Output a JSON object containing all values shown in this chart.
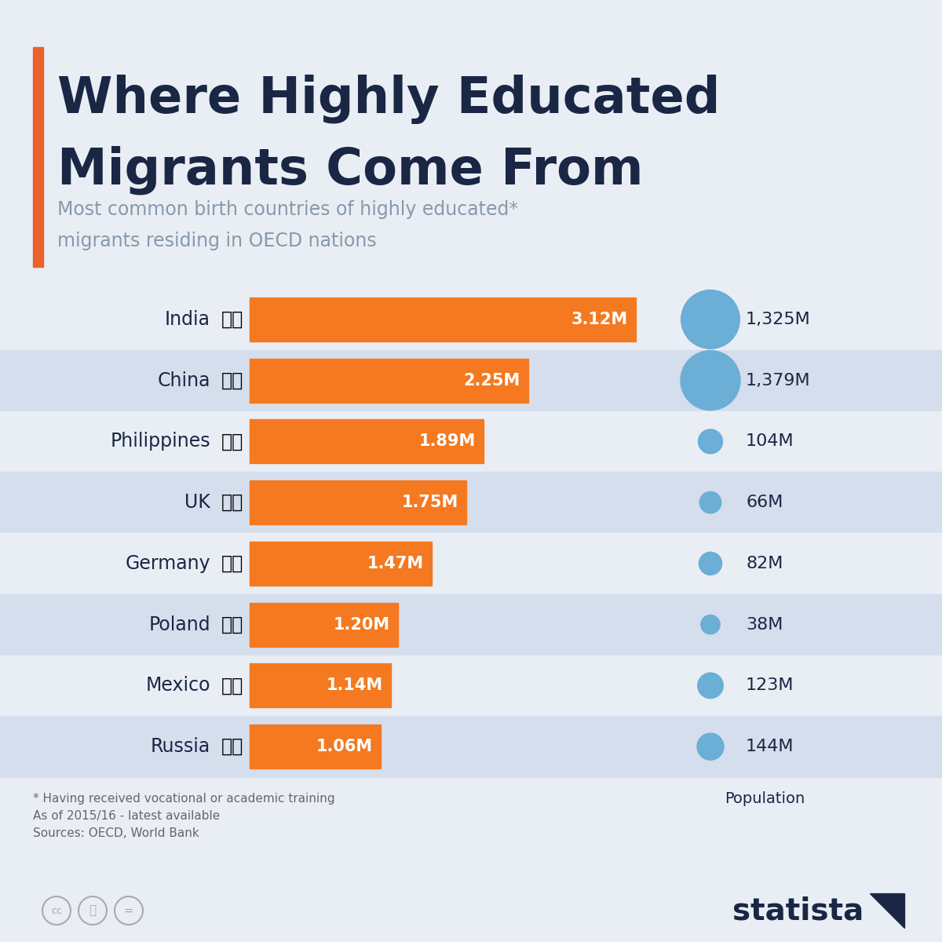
{
  "title_line1": "Where Highly Educated",
  "title_line2": "Migrants Come From",
  "subtitle_line1": "Most common birth countries of highly educated*",
  "subtitle_line2": "migrants residing in OECD nations",
  "countries": [
    "India",
    "China",
    "Philippines",
    "UK",
    "Germany",
    "Poland",
    "Mexico",
    "Russia"
  ],
  "migrants": [
    3.12,
    2.25,
    1.89,
    1.75,
    1.47,
    1.2,
    1.14,
    1.06
  ],
  "migrant_labels": [
    "3.12M",
    "2.25M",
    "1.89M",
    "1.75M",
    "1.47M",
    "1.20M",
    "1.14M",
    "1.06M"
  ],
  "population": [
    1325,
    1379,
    104,
    66,
    82,
    38,
    123,
    144
  ],
  "population_labels": [
    "1,325M",
    "1,379M",
    "104M",
    "66M",
    "82M",
    "38M",
    "123M",
    "144M"
  ],
  "flag_emojis": {
    "India": "🇮🇳",
    "China": "🇨🇳",
    "Philippines": "🇵🇭",
    "UK": "🇬🇧",
    "Germany": "🇩🇪",
    "Poland": "🇵🇱",
    "Mexico": "🇲🇽",
    "Russia": "🇷🇺"
  },
  "bar_color": "#F47920",
  "bar_text_color": "#FFFFFF",
  "bubble_color": "#6BAED6",
  "bg_color": "#E9EEF5",
  "row_alt_color": "#D5DEED",
  "title_color": "#1a2744",
  "subtitle_color": "#8899AA",
  "text_color": "#1a2744",
  "footnote_color": "#666666",
  "orange_accent_color": "#E8622A",
  "footnote_line1": "* Having received vocational or academic training",
  "footnote_line2": "As of 2015/16 - latest available",
  "footnote_line3": "Sources: OECD, World Bank",
  "pop_label": "Population",
  "max_bar_value": 3.12
}
